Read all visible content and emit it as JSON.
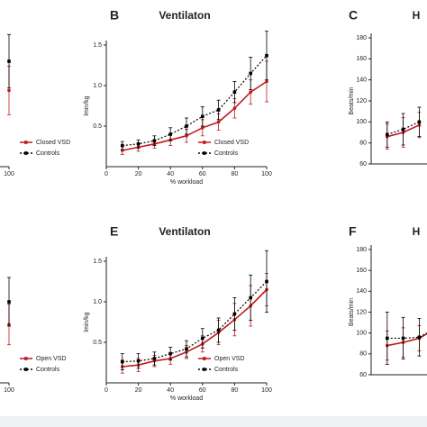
{
  "chart_data": [
    {
      "type": "line",
      "ylim": [
        0,
        1.5
      ],
      "xlim": [
        0,
        100
      ],
      "xticks": [
        100
      ],
      "legend": "right",
      "x": [
        100
      ],
      "series": [
        {
          "name": "Closed VSD",
          "color": "#c0191f",
          "linestyle": "solid",
          "values": [
            0.94
          ],
          "errors": [
            0.3
          ]
        },
        {
          "name": "Controls",
          "color": "#000000",
          "linestyle": "dotted",
          "values": [
            1.3
          ],
          "errors": [
            0.33
          ]
        }
      ]
    },
    {
      "type": "line",
      "panel_label": "B",
      "title": "Ventilaton",
      "xlabel": "% workload",
      "ylabel": "lmin/kg",
      "xlim": [
        0,
        100
      ],
      "ylim": [
        0,
        1.5
      ],
      "xticks": [
        0,
        20,
        40,
        60,
        80,
        100
      ],
      "yticks": [
        0.5,
        {
          "value": 1,
          "label": "1.0"
        },
        1.5
      ],
      "legend": "lower right",
      "x": [
        10,
        20,
        30,
        40,
        50,
        60,
        70,
        80,
        90,
        100
      ],
      "series": [
        {
          "name": "Closed VSD",
          "color": "#c0191f",
          "linestyle": "solid",
          "values": [
            0.2,
            0.24,
            0.28,
            0.33,
            0.38,
            0.48,
            0.55,
            0.72,
            0.92,
            1.05
          ],
          "errors": [
            0.05,
            0.05,
            0.05,
            0.07,
            0.08,
            0.1,
            0.1,
            0.12,
            0.15,
            0.25
          ]
        },
        {
          "name": "Controls",
          "color": "#000000",
          "linestyle": "dotted",
          "values": [
            0.26,
            0.28,
            0.32,
            0.4,
            0.5,
            0.62,
            0.7,
            0.92,
            1.15,
            1.37
          ],
          "errors": [
            0.05,
            0.05,
            0.06,
            0.08,
            0.1,
            0.12,
            0.12,
            0.13,
            0.2,
            0.3
          ]
        }
      ]
    },
    {
      "type": "line",
      "panel_label": "C",
      "title": "H",
      "ylabel": "Beats/min",
      "xlim": [
        0,
        100
      ],
      "ylim": [
        60,
        180
      ],
      "yticks": [
        60,
        80,
        100,
        120,
        140,
        160,
        180
      ],
      "x": [
        10,
        20,
        30
      ],
      "series": [
        {
          "name": "Closed VSD",
          "color": "#c0191f",
          "linestyle": "solid",
          "values": [
            86,
            90,
            97
          ],
          "errors": [
            12,
            14,
            12
          ]
        },
        {
          "name": "Controls",
          "color": "#000000",
          "linestyle": "dotted",
          "values": [
            88,
            93,
            100
          ],
          "errors": [
            12,
            15,
            14
          ]
        }
      ]
    },
    {
      "type": "line",
      "ylim": [
        0,
        1.5
      ],
      "xlim": [
        0,
        100
      ],
      "xticks": [
        100
      ],
      "legend": "right",
      "x": [
        100
      ],
      "series": [
        {
          "name": "Open VSD",
          "color": "#c0191f",
          "linestyle": "solid",
          "values": [
            0.72
          ],
          "errors": [
            0.25
          ]
        },
        {
          "name": "Controls",
          "color": "#000000",
          "linestyle": "dotted",
          "values": [
            1.0
          ],
          "errors": [
            0.3
          ]
        }
      ]
    },
    {
      "type": "line",
      "panel_label": "E",
      "title": "Ventilaton",
      "xlabel": "% workload",
      "ylabel": "lmin/kg",
      "xlim": [
        0,
        100
      ],
      "ylim": [
        0,
        1.5
      ],
      "xticks": [
        0,
        20,
        40,
        60,
        80,
        100
      ],
      "yticks": [
        0.5,
        {
          "value": 1,
          "label": "1.0"
        },
        1.5
      ],
      "legend": "lower right",
      "x": [
        10,
        20,
        30,
        40,
        50,
        60,
        70,
        80,
        90,
        100
      ],
      "series": [
        {
          "name": "Open  VSD",
          "color": "#c0191f",
          "linestyle": "solid",
          "values": [
            0.2,
            0.22,
            0.27,
            0.3,
            0.38,
            0.48,
            0.62,
            0.78,
            0.95,
            1.15
          ],
          "errors": [
            0.08,
            0.08,
            0.07,
            0.07,
            0.08,
            0.1,
            0.15,
            0.2,
            0.25,
            0.2
          ]
        },
        {
          "name": "Controls",
          "color": "#000000",
          "linestyle": "dotted",
          "values": [
            0.26,
            0.27,
            0.3,
            0.36,
            0.42,
            0.55,
            0.65,
            0.85,
            1.05,
            1.25
          ],
          "errors": [
            0.1,
            0.09,
            0.08,
            0.08,
            0.1,
            0.12,
            0.15,
            0.2,
            0.28,
            0.38
          ]
        }
      ]
    },
    {
      "type": "line",
      "panel_label": "F",
      "title": "H",
      "ylabel": "Beats/min",
      "xlim": [
        0,
        100
      ],
      "ylim": [
        60,
        180
      ],
      "yticks": [
        60,
        80,
        100,
        120,
        140,
        160,
        180
      ],
      "x": [
        10,
        20,
        30,
        40
      ],
      "series": [
        {
          "name": "Open VSD",
          "color": "#c0191f",
          "linestyle": "solid",
          "values": [
            88,
            91,
            95,
            104
          ],
          "errors": [
            14,
            14,
            12,
            12
          ]
        },
        {
          "name": "Controls",
          "color": "#000000",
          "linestyle": "dotted",
          "values": [
            95,
            95,
            96,
            104
          ],
          "errors": [
            25,
            20,
            18,
            14
          ]
        }
      ]
    }
  ]
}
